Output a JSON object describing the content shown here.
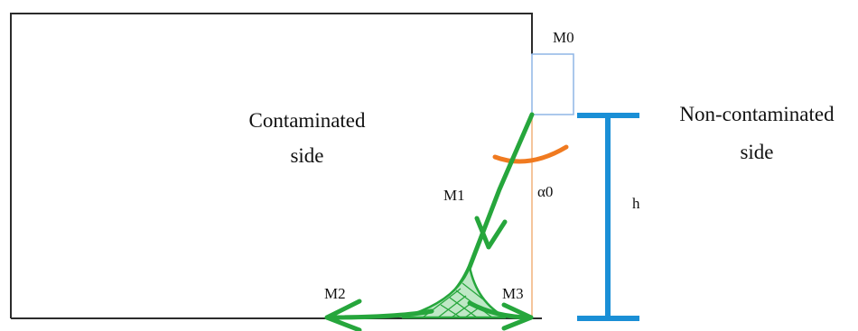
{
  "labels": {
    "contaminated_line1": "Contaminated",
    "contaminated_line2": "side",
    "non_contaminated_line1": "Non-contaminated",
    "non_contaminated_line2": "side",
    "m0": "M0",
    "m1": "M1",
    "m2": "M2",
    "m3": "M3",
    "alpha0": "α0",
    "h": "h"
  },
  "colors": {
    "outline": "#2b2b2b",
    "m0_box": "#8fb6e6",
    "vertical_line": "#f2b27a",
    "green_path": "#26a63c",
    "orange_arc": "#f07a20",
    "h_marker": "#1a8fd6"
  }
}
